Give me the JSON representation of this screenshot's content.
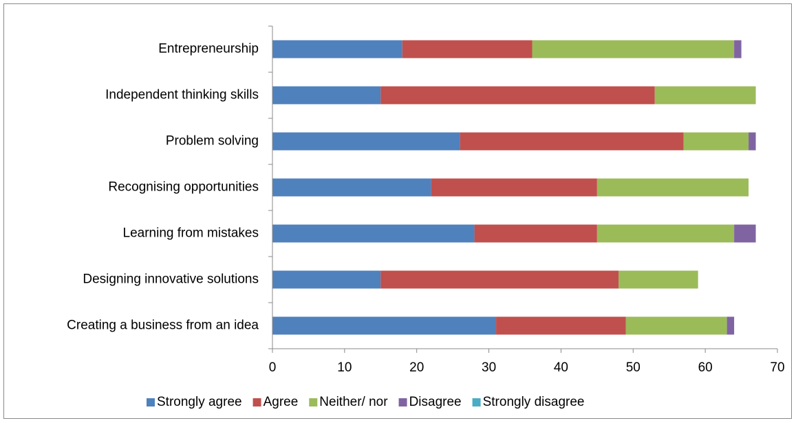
{
  "chart_data": {
    "type": "stacked_bar_horizontal",
    "categories": [
      "Entrepreneurship",
      "Independent thinking skills",
      "Problem solving",
      "Recognising opportunities",
      "Learning from mistakes",
      "Designing innovative solutions",
      "Creating a business from an idea"
    ],
    "series": [
      {
        "name": "Strongly agree",
        "color": "#4f81bd",
        "values": [
          18,
          15,
          26,
          22,
          28,
          15,
          31
        ]
      },
      {
        "name": "Agree",
        "color": "#c0504d",
        "values": [
          18,
          38,
          31,
          23,
          17,
          33,
          18
        ]
      },
      {
        "name": "Neither/ nor",
        "color": "#9bbb59",
        "values": [
          28,
          14,
          9,
          21,
          19,
          11,
          14
        ]
      },
      {
        "name": "Disagree",
        "color": "#8064a2",
        "values": [
          1,
          0,
          1,
          0,
          3,
          0,
          1
        ]
      },
      {
        "name": "Strongly disagree",
        "color": "#4bacc6",
        "values": [
          0,
          0,
          0,
          0,
          0,
          0,
          0
        ]
      }
    ],
    "xlim": [
      0,
      70
    ],
    "xticks": [
      0,
      10,
      20,
      30,
      40,
      50,
      60,
      70
    ],
    "grid": false,
    "legend": "bottom"
  }
}
